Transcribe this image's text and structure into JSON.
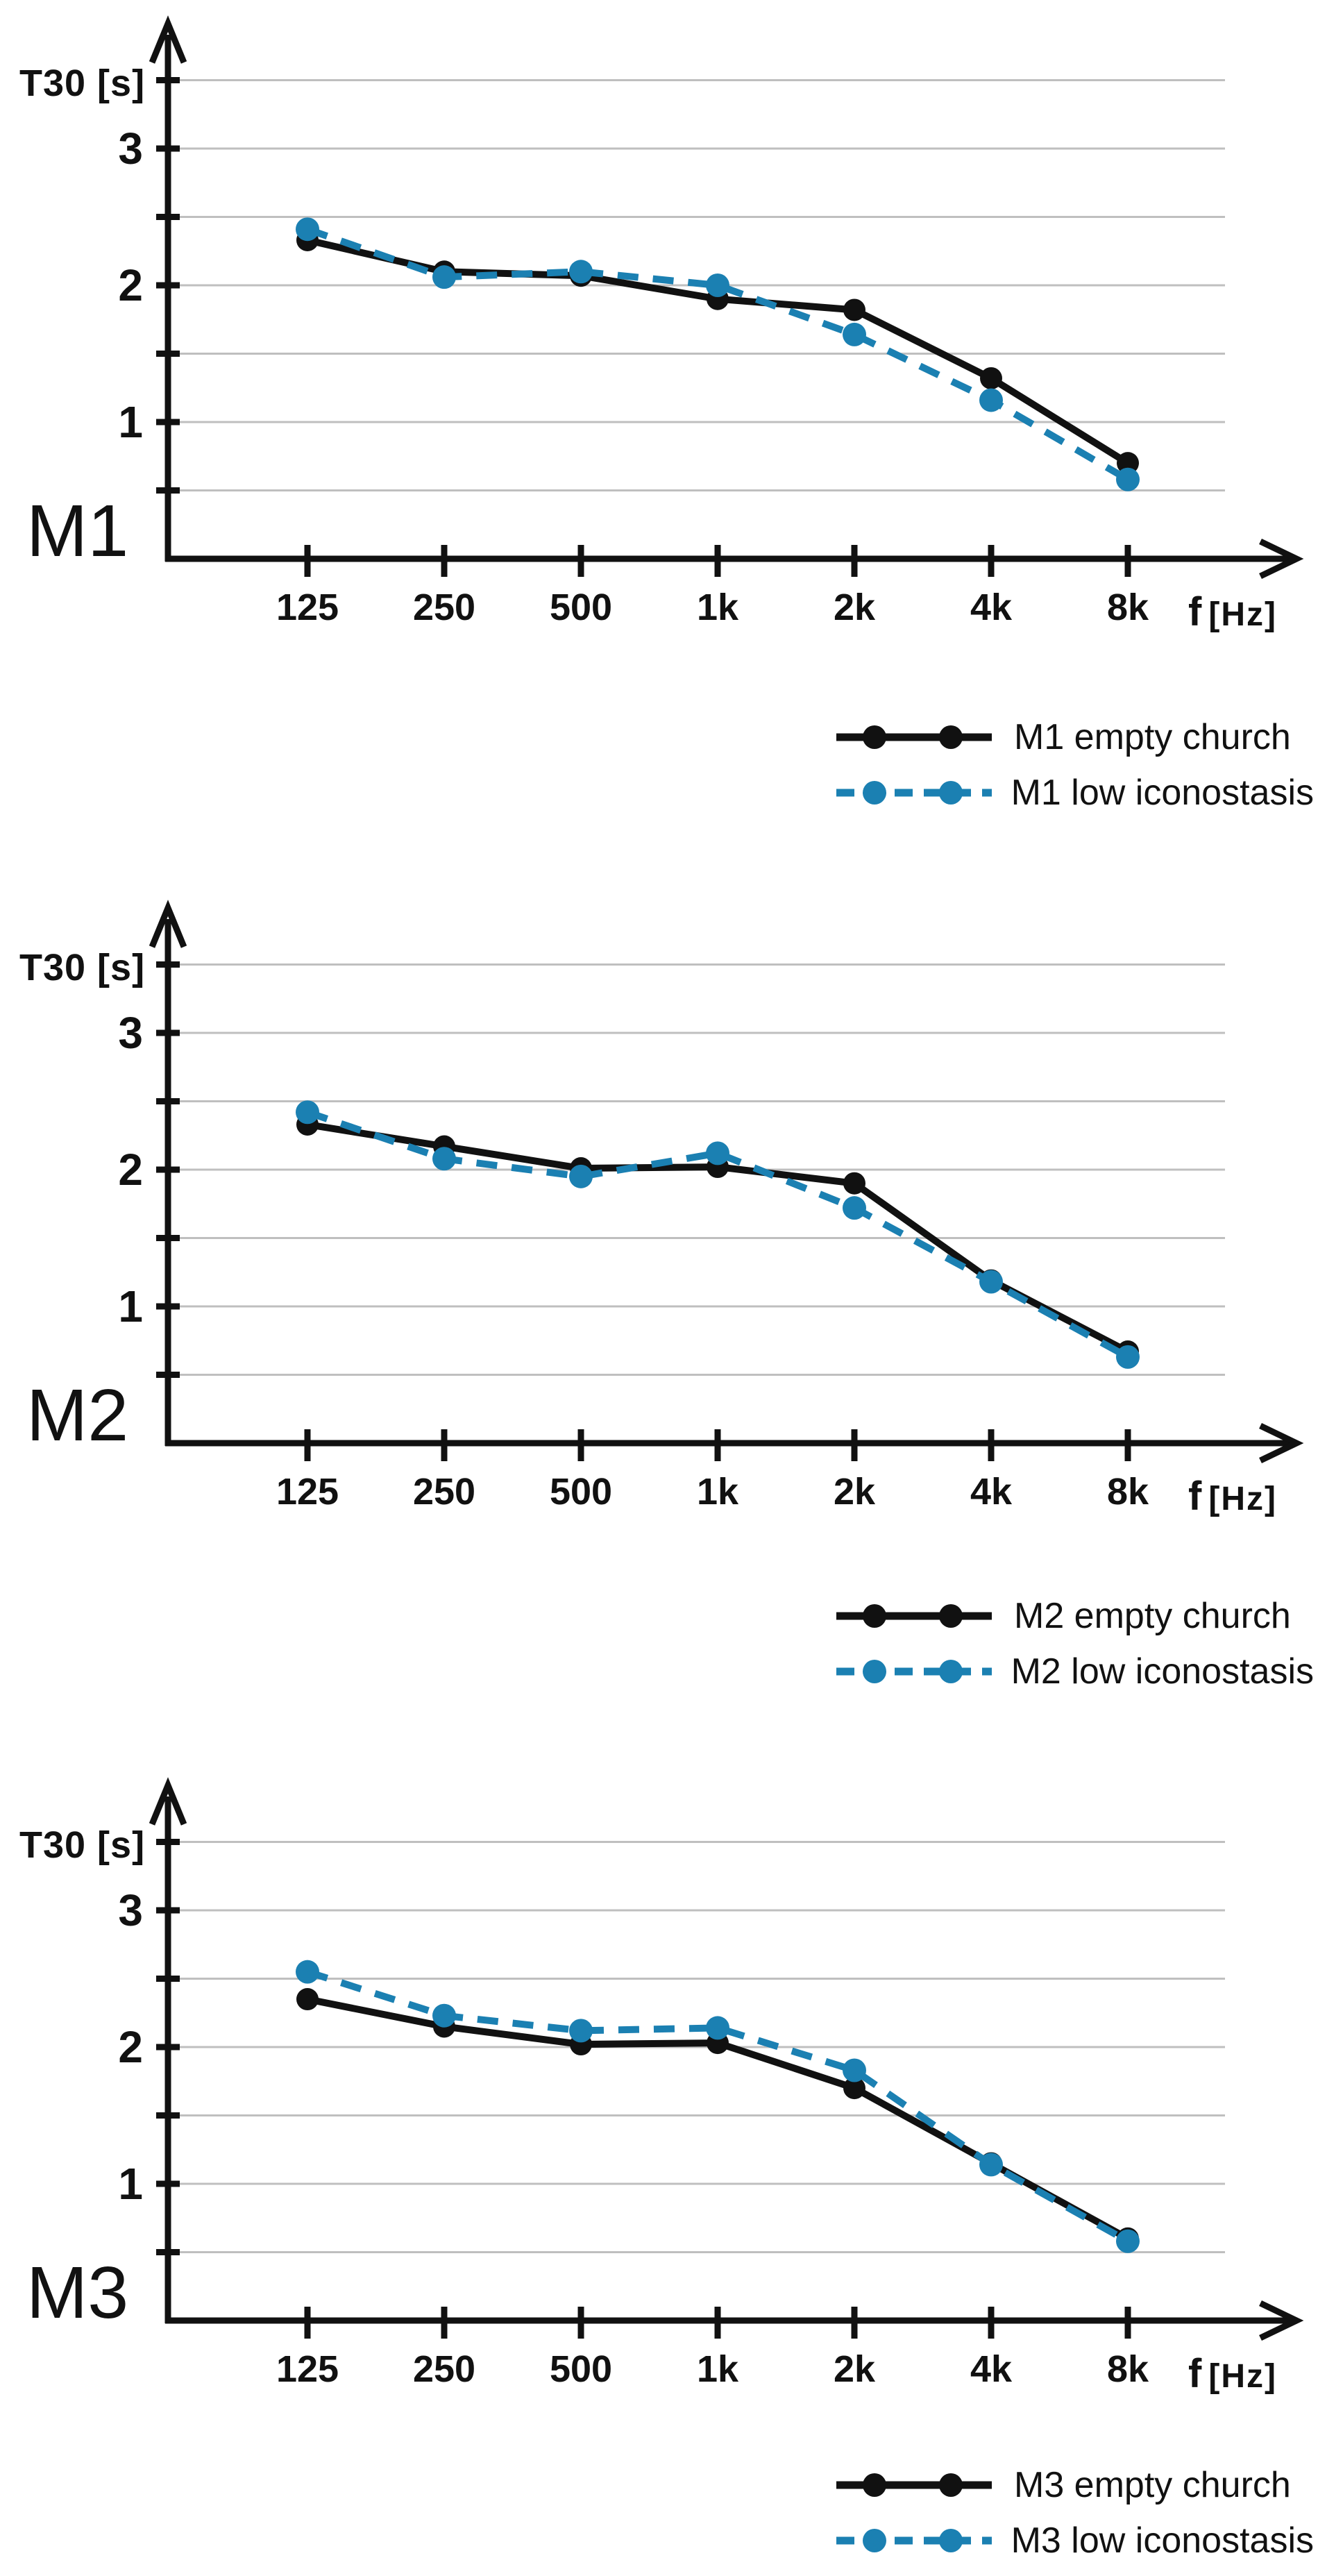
{
  "page": {
    "background": "#ffffff"
  },
  "colors": {
    "axis": "#111111",
    "gridline": "#bfbfbf",
    "series_empty": "#111111",
    "series_low": "#1b80b2"
  },
  "y_axis": {
    "label": "T30 [s]",
    "tick_labels": [
      "1",
      "2",
      "3"
    ],
    "minor_step": 0.5,
    "max_grid": 3.5
  },
  "x_axis": {
    "label": "f",
    "unit": "[Hz]"
  },
  "chart_data": [
    {
      "type": "line",
      "title": "M1",
      "categories": [
        "125",
        "250",
        "500",
        "1k",
        "2k",
        "4k",
        "8k"
      ],
      "xlabel": "f [Hz]",
      "ylabel": "T30 [s]",
      "ylim": [
        0,
        3.9
      ],
      "grid": true,
      "legend_position": "below-right",
      "series": [
        {
          "name": "M1 empty church",
          "style": "solid",
          "color": "#111111",
          "marker": "circle",
          "values": [
            2.33,
            2.1,
            2.07,
            1.9,
            1.82,
            1.32,
            0.7
          ]
        },
        {
          "name": "M1 low iconostasis",
          "style": "dashed",
          "color": "#1b80b2",
          "marker": "circle",
          "values": [
            2.41,
            2.06,
            2.1,
            2.0,
            1.64,
            1.16,
            0.58
          ]
        }
      ]
    },
    {
      "type": "line",
      "title": "M2",
      "categories": [
        "125",
        "250",
        "500",
        "1k",
        "2k",
        "4k",
        "8k"
      ],
      "xlabel": "f [Hz]",
      "ylabel": "T30 [s]",
      "ylim": [
        0,
        3.9
      ],
      "grid": true,
      "legend_position": "below-right",
      "series": [
        {
          "name": "M2 empty church",
          "style": "solid",
          "color": "#111111",
          "marker": "circle",
          "values": [
            2.33,
            2.17,
            2.01,
            2.02,
            1.9,
            1.19,
            0.67
          ]
        },
        {
          "name": "M2 low iconostasis",
          "style": "dashed",
          "color": "#1b80b2",
          "marker": "circle",
          "values": [
            2.42,
            2.08,
            1.95,
            2.12,
            1.72,
            1.18,
            0.63
          ]
        }
      ]
    },
    {
      "type": "line",
      "title": "M3",
      "categories": [
        "125",
        "250",
        "500",
        "1k",
        "2k",
        "4k",
        "8k"
      ],
      "xlabel": "f [Hz]",
      "ylabel": "T30 [s]",
      "ylim": [
        0,
        3.9
      ],
      "grid": true,
      "legend_position": "below-right",
      "series": [
        {
          "name": "M3 empty church",
          "style": "solid",
          "color": "#111111",
          "marker": "circle",
          "values": [
            2.35,
            2.15,
            2.02,
            2.03,
            1.7,
            1.15,
            0.6
          ]
        },
        {
          "name": "M3 low iconostasis",
          "style": "dashed",
          "color": "#1b80b2",
          "marker": "circle",
          "values": [
            2.55,
            2.23,
            2.12,
            2.14,
            1.83,
            1.14,
            0.58
          ]
        }
      ]
    }
  ]
}
